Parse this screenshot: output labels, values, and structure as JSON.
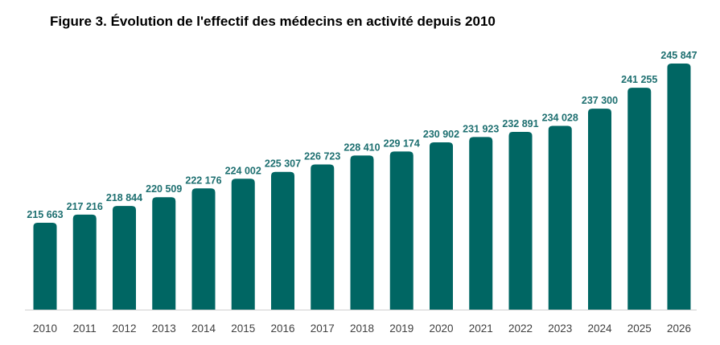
{
  "chart_data": {
    "type": "bar",
    "title": "Figure 3. Évolution de l'effectif des médecins en activité depuis 2010",
    "xlabel": "",
    "ylabel": "",
    "categories": [
      "2010",
      "2011",
      "2012",
      "2013",
      "2014",
      "2015",
      "2016",
      "2017",
      "2018",
      "2019",
      "2020",
      "2021",
      "2022",
      "2023",
      "2024",
      "2025",
      "2026"
    ],
    "values": [
      215663,
      217216,
      218844,
      220509,
      222176,
      224002,
      225307,
      226723,
      228410,
      229174,
      230902,
      231923,
      232891,
      234028,
      237300,
      241255,
      245847
    ],
    "data_labels": [
      "215 663",
      "217 216",
      "218 844",
      "220 509",
      "222 176",
      "224 002",
      "225 307",
      "226 723",
      "228 410",
      "229 174",
      "230 902",
      "231 923",
      "232 891",
      "234 028",
      "237 300",
      "241 255",
      "245 847"
    ],
    "ylim": [
      199200,
      248000
    ],
    "grid": false,
    "legend": "none",
    "bar_color": "#006663"
  }
}
